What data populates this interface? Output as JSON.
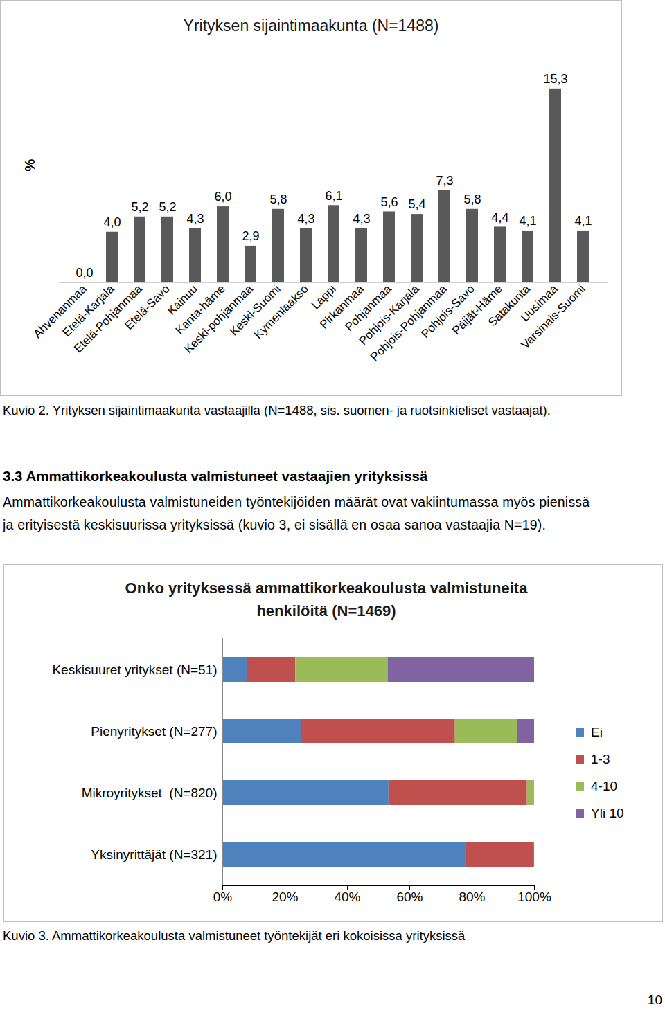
{
  "chart_data": [
    {
      "type": "bar",
      "title": "Yrityksen sijaintimaakunta (N=1488)",
      "y_label": "%",
      "categories": [
        "Ahvenanmaa",
        "Etelä-Karjala",
        "Etelä-Pohjanmaa",
        "Etelä-Savo",
        "Kainuu",
        "Kanta-häme",
        "Keski-pohjanmaa",
        "Keski-Suomi",
        "Kymenlaakso",
        "Lappi",
        "Pirkanmaa",
        "Pohjanmaa",
        "Pohjois-Karjala",
        "Pohjois-Pohjanmaa",
        "Pohjois-Savo",
        "Päijät-Häme",
        "Satakunta",
        "Uusimaa",
        "Varsinais-Suomi"
      ],
      "values": [
        0.0,
        4.0,
        5.2,
        5.2,
        4.3,
        6.0,
        2.9,
        5.8,
        4.3,
        6.1,
        4.3,
        5.6,
        5.4,
        7.3,
        5.8,
        4.4,
        4.1,
        15.3,
        4.1
      ],
      "value_labels": [
        "0,0",
        "4,0",
        "5,2",
        "5,2",
        "4,3",
        "6,0",
        "2,9",
        "5,8",
        "4,3",
        "6,1",
        "4,3",
        "5,6",
        "5,4",
        "7,3",
        "5,8",
        "4,4",
        "4,1",
        "15,3",
        "4,1"
      ],
      "color": "#595959",
      "ylim": [
        0,
        16
      ],
      "yticks": [],
      "data_labels": true,
      "tick_labels": "x",
      "grid": false
    },
    {
      "type": "bar",
      "title": "Onko yrityksessä ammattikorkeakoulusta valmistuneita\nhenkilöitä (N=1469)",
      "orientation": "horizontal",
      "stacked": true,
      "categories": [
        "Keskisuuret yritykset (N=51)",
        "Pienyritykset (N=277)",
        "Mikroyritykset  (N=820)",
        "Yksinyrittäjät (N=321)"
      ],
      "series": [
        {
          "name": "Ei",
          "color": "#4f81bd",
          "values": [
            7.8,
            25.3,
            53.3,
            77.8
          ]
        },
        {
          "name": "1-3",
          "color": "#c0504d",
          "values": [
            15.6,
            49.3,
            44.4,
            21.8
          ]
        },
        {
          "name": "4-10",
          "color": "#9bbb59",
          "values": [
            29.6,
            20.0,
            2.3,
            0.2
          ]
        },
        {
          "name": "Yli 10",
          "color": "#8064a2",
          "values": [
            47.0,
            5.4,
            0.0,
            0.2
          ]
        }
      ],
      "xlim": [
        0,
        100
      ],
      "xticks": [
        {
          "value": 0,
          "label": "0%"
        },
        {
          "value": 20,
          "label": "20%"
        },
        {
          "value": 40,
          "label": "40%"
        },
        {
          "value": 60,
          "label": "60%"
        },
        {
          "value": 80,
          "label": "80%"
        },
        {
          "value": 100,
          "label": "100%"
        }
      ],
      "legend": "right",
      "grid": false
    }
  ],
  "document": {
    "caption_1": "Kuvio 2. Yrityksen sijaintimaakunta vastaajilla (N=1488, sis. suomen- ja ruotsinkieliset vastaajat).",
    "heading": "3.3 Ammattikorkeakoulusta valmistuneet vastaajien yrityksissä",
    "paragraph": [
      "Ammattikorkeakoulusta valmistuneiden työntekijöiden määrät ovat vakiintumassa myös pienissä",
      "ja erityisestä keskisuurissa yrityksissä (kuvio 3, ei sisällä en osaa sanoa vastaajia N=19)."
    ],
    "caption_2": "Kuvio 3. Ammattikorkeakoulusta valmistuneet työntekijät eri kokoisissa yrityksissä",
    "page_number": "10"
  }
}
